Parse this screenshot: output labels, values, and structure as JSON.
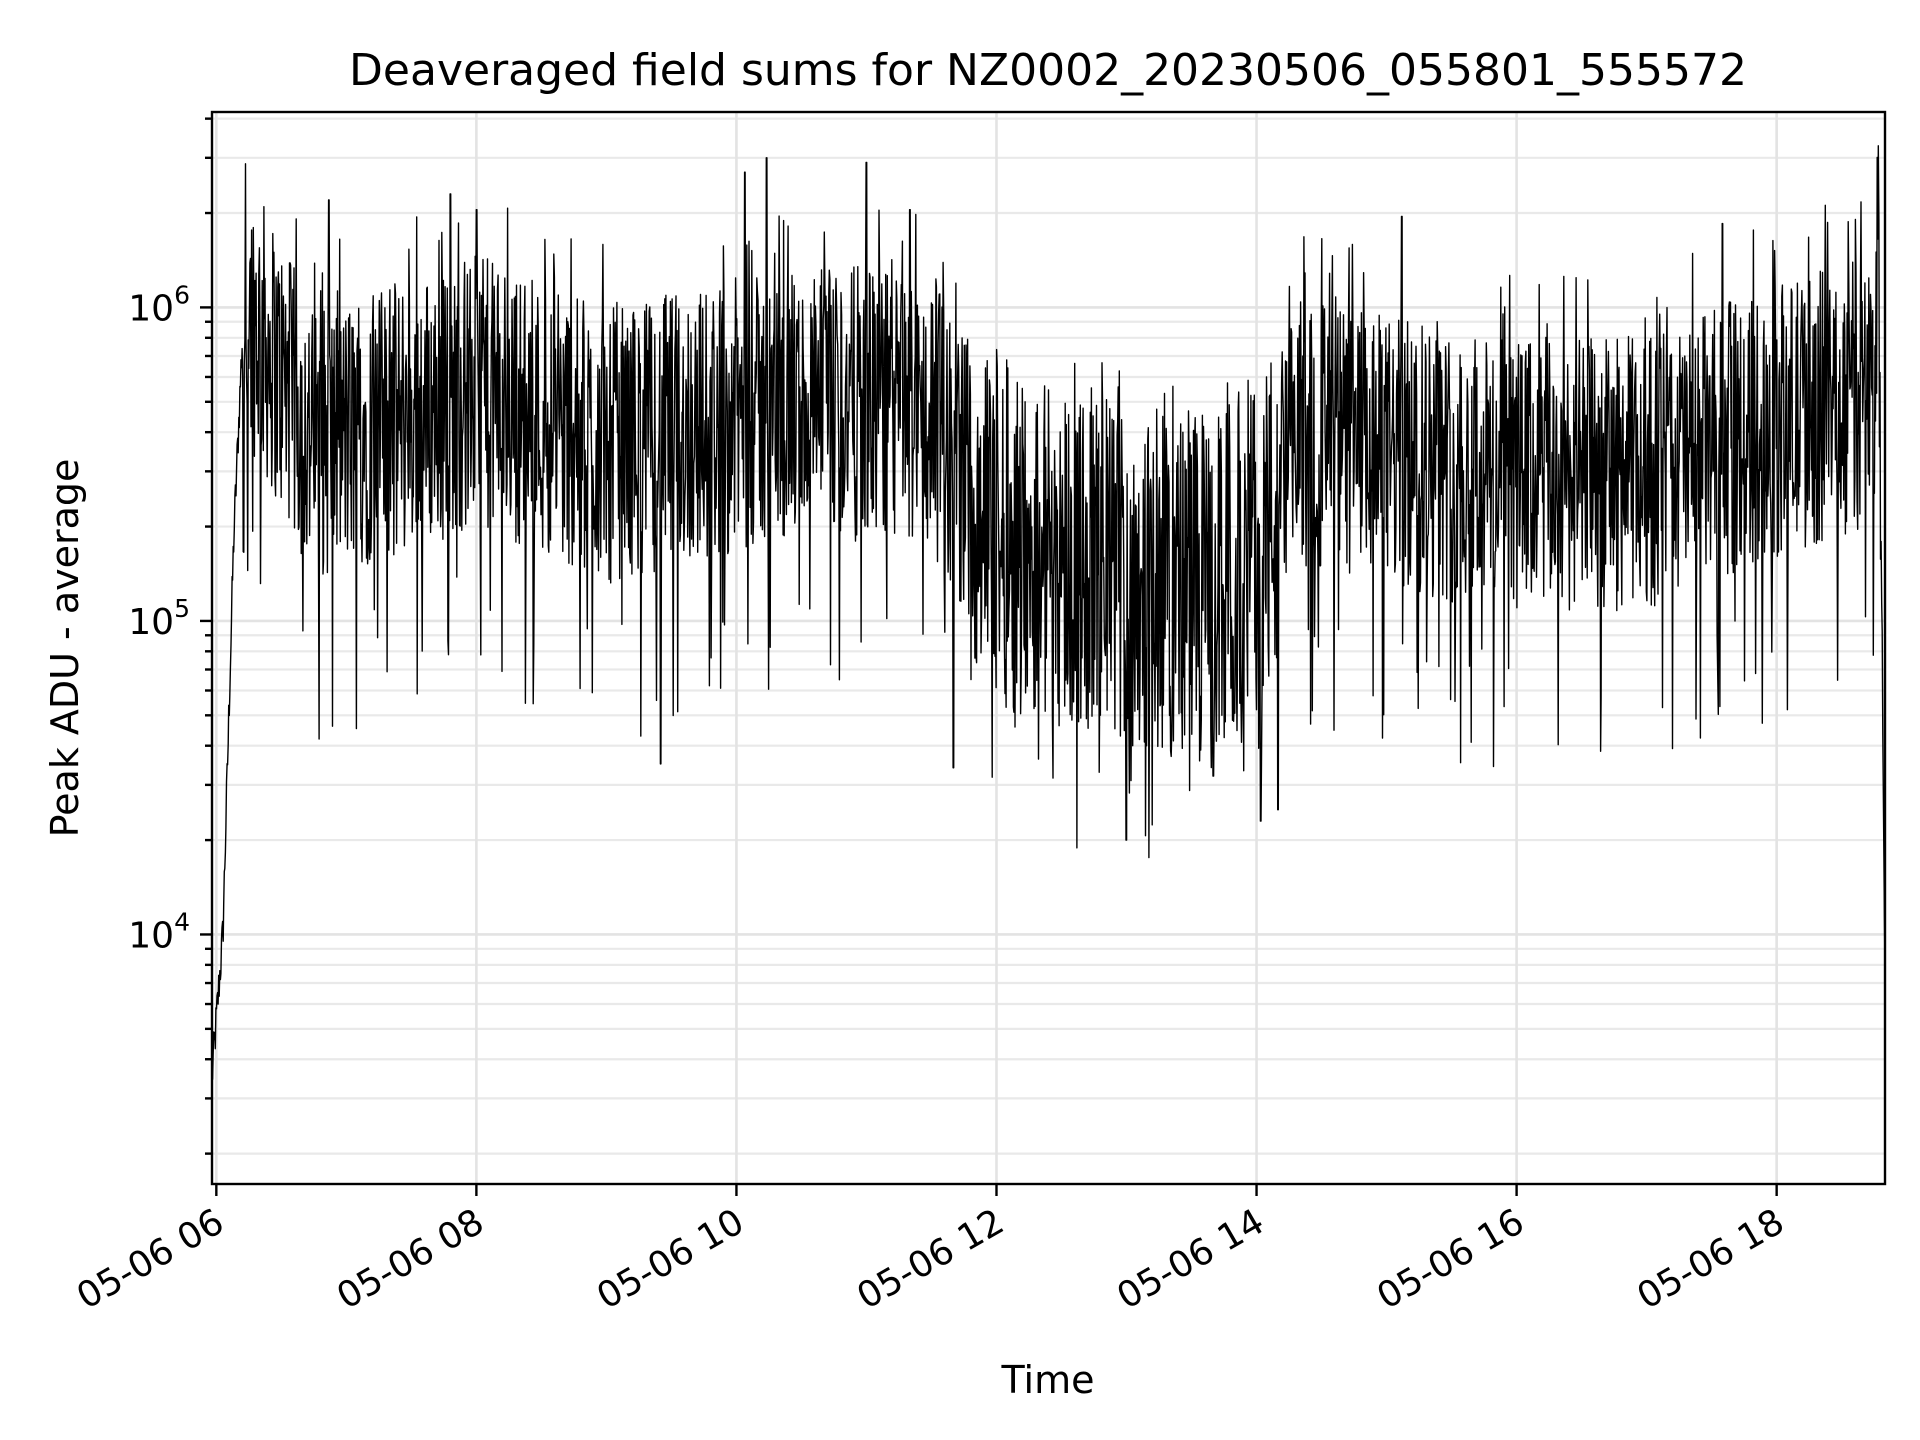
{
  "chart_data": {
    "type": "line",
    "title": "Deaveraged field sums for NZ0002_20230506_055801_555572",
    "xlabel": "Time",
    "ylabel": "Peak ADU - average",
    "yscale": "log",
    "grid": "major and minor",
    "x_tick_labels": [
      "05-06 06",
      "05-06 08",
      "05-06 10",
      "05-06 12",
      "05-06 14",
      "05-06 16",
      "05-06 18"
    ],
    "y_tick_labels": [
      {
        "base": "10",
        "exp": "4"
      },
      {
        "base": "10",
        "exp": "5"
      },
      {
        "base": "10",
        "exp": "6"
      }
    ],
    "xlim": [
      "2023-05-06 05:58",
      "2023-05-06 18:50"
    ],
    "ylim": [
      1600,
      4200000
    ],
    "series_color": "#000000",
    "series": [
      {
        "name": "",
        "description_anchors": [
          {
            "t": "2023-05-06 05:58",
            "y": 3500
          },
          {
            "t": "2023-05-06 06:03",
            "y": 10000
          },
          {
            "t": "2023-05-06 06:08",
            "y": 180000
          },
          {
            "t": "2023-05-06 06:12",
            "y": 800000
          },
          {
            "t": "2023-05-06 06:15",
            "y": 1100000
          },
          {
            "t": "2023-05-06 06:45",
            "y": 400000
          },
          {
            "t": "2023-05-06 07:30",
            "y": 500000
          },
          {
            "t": "2023-05-06 08:00",
            "y": 600000
          },
          {
            "t": "2023-05-06 09:00",
            "y": 400000
          },
          {
            "t": "2023-05-06 10:00",
            "y": 500000
          },
          {
            "t": "2023-05-06 11:00",
            "y": 550000
          },
          {
            "t": "2023-05-06 11:30",
            "y": 500000
          },
          {
            "t": "2023-05-06 12:00",
            "y": 220000
          },
          {
            "t": "2023-05-06 13:00",
            "y": 160000
          },
          {
            "t": "2023-05-06 13:40",
            "y": 140000
          },
          {
            "t": "2023-05-06 14:10",
            "y": 250000
          },
          {
            "t": "2023-05-06 14:20",
            "y": 450000
          },
          {
            "t": "2023-05-06 15:00",
            "y": 380000
          },
          {
            "t": "2023-05-06 16:00",
            "y": 320000
          },
          {
            "t": "2023-05-06 17:00",
            "y": 330000
          },
          {
            "t": "2023-05-06 18:00",
            "y": 480000
          },
          {
            "t": "2023-05-06 18:45",
            "y": 600000
          },
          {
            "t": "2023-05-06 18:47",
            "y": 1800000
          },
          {
            "t": "2023-05-06 18:50",
            "y": 8000
          }
        ],
        "peaks": [
          {
            "t": "2023-05-06 06:52",
            "y": 2200000
          },
          {
            "t": "2023-05-06 07:48",
            "y": 2300000
          },
          {
            "t": "2023-05-06 08:00",
            "y": 2050000
          },
          {
            "t": "2023-05-06 10:04",
            "y": 2700000
          },
          {
            "t": "2023-05-06 10:14",
            "y": 3000000
          },
          {
            "t": "2023-05-06 11:00",
            "y": 2900000
          },
          {
            "t": "2023-05-06 11:20",
            "y": 2050000
          },
          {
            "t": "2023-05-06 15:07",
            "y": 1950000
          },
          {
            "t": "2023-05-06 17:35",
            "y": 1850000
          }
        ],
        "troughs": [
          {
            "t": "2023-05-06 09:25",
            "y": 35000
          },
          {
            "t": "2023-05-06 11:40",
            "y": 34000
          },
          {
            "t": "2023-05-06 13:00",
            "y": 20000
          },
          {
            "t": "2023-05-06 13:40",
            "y": 32000
          },
          {
            "t": "2023-05-06 14:02",
            "y": 23000
          },
          {
            "t": "2023-05-06 14:10",
            "y": 25000
          }
        ]
      }
    ]
  }
}
